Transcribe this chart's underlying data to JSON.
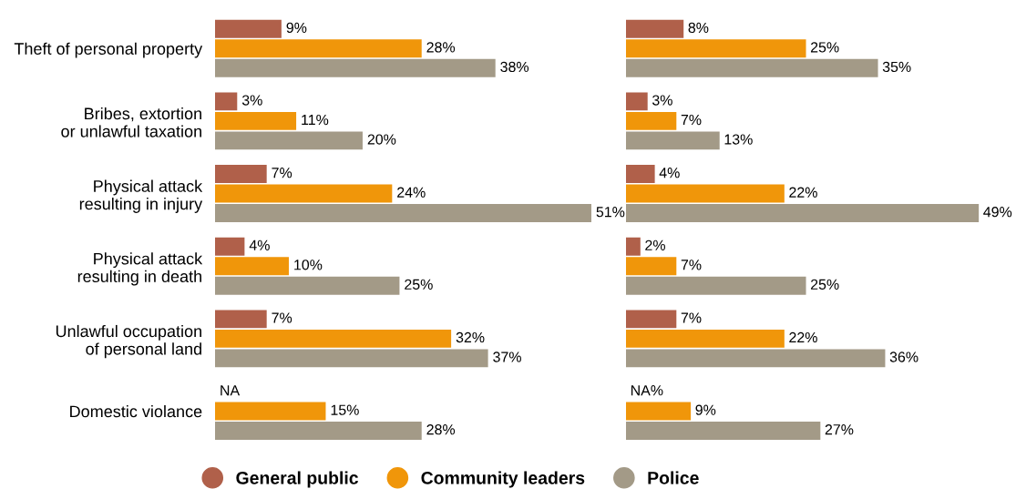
{
  "chart_data": [
    {
      "type": "bar",
      "orientation": "horizontal",
      "legend": "bottom",
      "tick_labels": "y",
      "categories": [
        "Theft of personal property",
        "Bribes, extortion\nor unlawful taxation",
        "Physical attack\nresulting in injury",
        "Physical attack\nresulting in death",
        "Unlawful occupation\nof personal land",
        "Domestic violance"
      ],
      "series": [
        {
          "name": "General public",
          "color": "#b0604a",
          "values": [
            9,
            3,
            7,
            4,
            7,
            null
          ],
          "value_labels": [
            "9%",
            "3%",
            "7%",
            "4%",
            "7%",
            "NA"
          ]
        },
        {
          "name": "Community leaders",
          "color": "#f0960a",
          "values": [
            28,
            11,
            24,
            10,
            32,
            15
          ],
          "value_labels": [
            "28%",
            "11%",
            "24%",
            "10%",
            "32%",
            "15%"
          ]
        },
        {
          "name": "Police",
          "color": "#a39a87",
          "values": [
            38,
            20,
            51,
            25,
            37,
            28
          ],
          "value_labels": [
            "38%",
            "20%",
            "51%",
            "25%",
            "37%",
            "28%"
          ]
        }
      ]
    },
    {
      "type": "bar",
      "orientation": "horizontal",
      "tick_labels": false,
      "categories": [
        null,
        null,
        null,
        null,
        null,
        null
      ],
      "series": [
        {
          "color": "#b0604a",
          "values": [
            8,
            3,
            4,
            2,
            7,
            null
          ],
          "value_labels": [
            "8%",
            "3%",
            "4%",
            "2%",
            "7%",
            "NA%"
          ]
        },
        {
          "color": "#f0960a",
          "values": [
            25,
            7,
            22,
            7,
            22,
            9
          ],
          "value_labels": [
            "25%",
            "7%",
            "22%",
            "7%",
            "22%",
            "9%"
          ]
        },
        {
          "color": "#a39a87",
          "values": [
            35,
            13,
            49,
            25,
            36,
            27
          ],
          "value_labels": [
            "35%",
            "13%",
            "49%",
            "25%",
            "36%",
            "27%"
          ]
        }
      ]
    }
  ]
}
